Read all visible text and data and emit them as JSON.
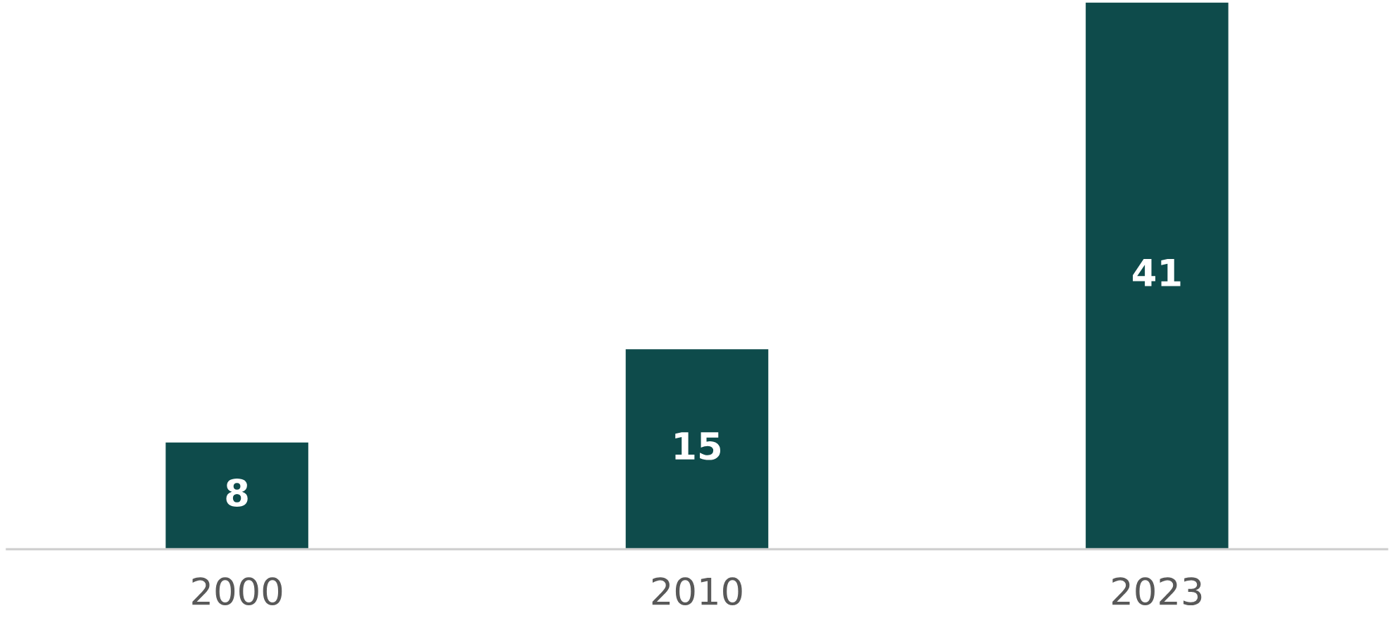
{
  "chart_data": {
    "type": "bar",
    "categories": [
      "2000",
      "2010",
      "2023"
    ],
    "values": [
      8,
      15,
      41
    ],
    "color": "#0e4b4b",
    "data_labels": true,
    "grid": false,
    "legend": false
  }
}
